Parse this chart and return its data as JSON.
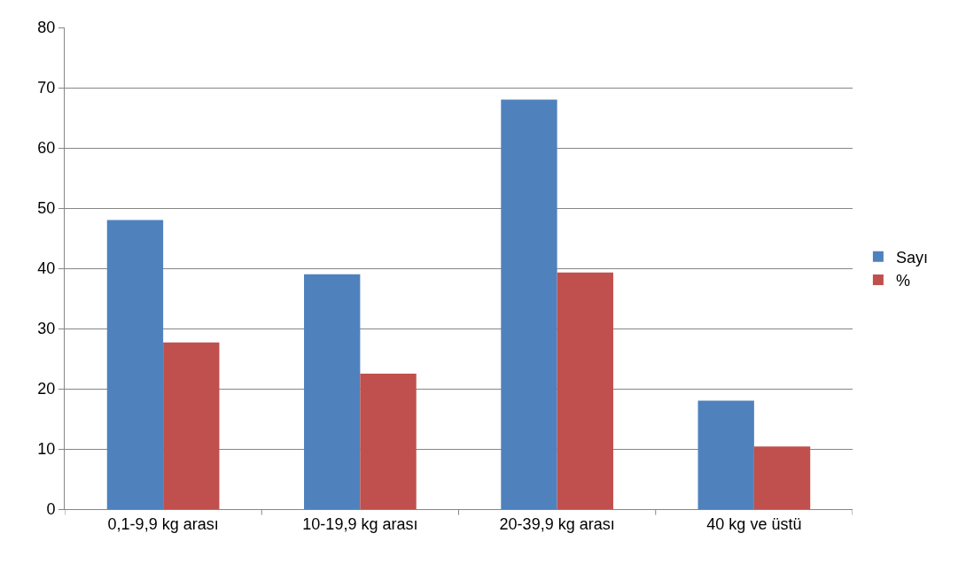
{
  "chart_data": {
    "type": "bar",
    "categories": [
      "0,1-9,9 kg arası",
      "10-19,9 kg arası",
      "20-39,9 kg arası",
      "40 kg ve üstü"
    ],
    "series": [
      {
        "name": "Sayı",
        "color": "#4f81bd",
        "values": [
          48,
          39,
          68,
          18
        ]
      },
      {
        "name": "%",
        "color": "#c0504d",
        "values": [
          27.7,
          22.5,
          39.3,
          10.4
        ]
      }
    ],
    "ylim": [
      0,
      80
    ],
    "yticks": [
      0,
      10,
      20,
      30,
      40,
      50,
      60,
      70,
      80
    ],
    "grid": "y",
    "legend": "right"
  }
}
